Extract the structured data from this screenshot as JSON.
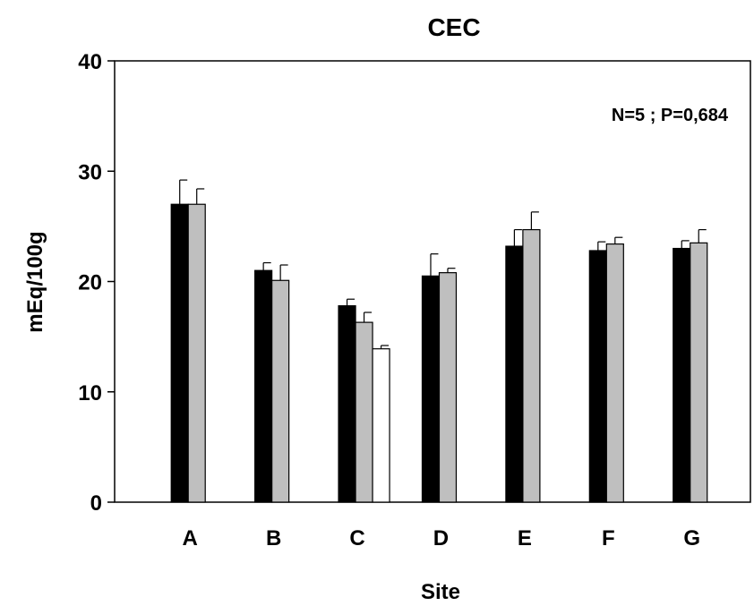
{
  "chart_data": {
    "type": "bar",
    "title": "CEC",
    "xlabel": "Site",
    "ylabel": "mEq/100g",
    "annotation": "N=5 ; P=0,684",
    "ylim": [
      0,
      40
    ],
    "yticks": [
      0,
      10,
      20,
      30,
      40
    ],
    "categories": [
      "A",
      "B",
      "C",
      "D",
      "E",
      "F",
      "G"
    ],
    "grid": false,
    "legend": "none",
    "series": [
      {
        "color": "#000000",
        "values": [
          27.0,
          21.0,
          17.8,
          20.5,
          23.2,
          22.8,
          23.0
        ],
        "errors": [
          2.2,
          0.7,
          0.6,
          2.0,
          1.5,
          0.8,
          0.7
        ]
      },
      {
        "color": "#bfbfbf",
        "values": [
          27.0,
          20.1,
          16.3,
          20.8,
          24.7,
          23.4,
          23.5
        ],
        "errors": [
          1.4,
          1.4,
          0.9,
          0.4,
          1.6,
          0.6,
          1.2
        ]
      },
      {
        "color": "#ffffff",
        "values": [
          null,
          null,
          13.9,
          null,
          null,
          null,
          null
        ],
        "errors": [
          null,
          null,
          0.3,
          null,
          null,
          null,
          null
        ]
      }
    ]
  }
}
